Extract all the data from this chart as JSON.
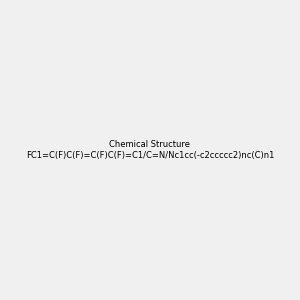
{
  "smiles": "FC1=C(F)C(F)=C(F)C(F)=C1/C=N/Nc1cc(-c2ccccc2)nc(C)n1",
  "background_color": "#f0f0f0",
  "title": "",
  "figsize": [
    3.0,
    3.0
  ],
  "dpi": 100
}
